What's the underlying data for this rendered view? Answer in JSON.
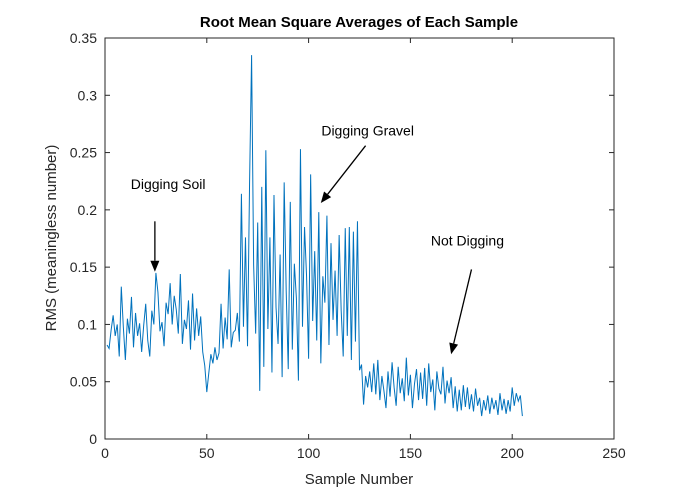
{
  "chart_data": {
    "type": "line",
    "title": "Root Mean Square Averages of Each Sample",
    "xlabel": "Sample Number",
    "ylabel": "RMS (meaningless number)",
    "xlim": [
      0,
      250
    ],
    "ylim": [
      0,
      0.35
    ],
    "xticks": [
      0,
      50,
      100,
      150,
      200,
      250
    ],
    "xtick_labels": [
      "0",
      "50",
      "100",
      "150",
      "200",
      "250"
    ],
    "yticks": [
      0,
      0.05,
      0.1,
      0.15,
      0.2,
      0.25,
      0.3,
      0.35
    ],
    "ytick_labels": [
      "0",
      "0.05",
      "0.1",
      "0.15",
      "0.2",
      "0.25",
      "0.3",
      "0.35"
    ],
    "grid": false,
    "series": [
      {
        "name": "RMS",
        "color": "#0072bd",
        "x_start": 1,
        "x_step": 1,
        "values": [
          0.082,
          0.079,
          0.095,
          0.108,
          0.09,
          0.1,
          0.072,
          0.133,
          0.098,
          0.069,
          0.105,
          0.092,
          0.124,
          0.08,
          0.11,
          0.09,
          0.101,
          0.076,
          0.099,
          0.118,
          0.086,
          0.072,
          0.112,
          0.1,
          0.145,
          0.128,
          0.094,
          0.102,
          0.081,
          0.119,
          0.109,
          0.136,
          0.1,
          0.125,
          0.113,
          0.092,
          0.144,
          0.083,
          0.104,
          0.096,
          0.121,
          0.078,
          0.127,
          0.086,
          0.114,
          0.09,
          0.107,
          0.076,
          0.064,
          0.041,
          0.058,
          0.074,
          0.066,
          0.08,
          0.069,
          0.075,
          0.118,
          0.079,
          0.106,
          0.087,
          0.148,
          0.08,
          0.093,
          0.095,
          0.11,
          0.085,
          0.214,
          0.098,
          0.176,
          0.081,
          0.223,
          0.335,
          0.152,
          0.092,
          0.189,
          0.042,
          0.22,
          0.063,
          0.252,
          0.096,
          0.176,
          0.058,
          0.213,
          0.115,
          0.083,
          0.161,
          0.054,
          0.224,
          0.129,
          0.061,
          0.207,
          0.078,
          0.153,
          0.123,
          0.051,
          0.253,
          0.098,
          0.185,
          0.142,
          0.07,
          0.231,
          0.103,
          0.164,
          0.086,
          0.198,
          0.066,
          0.142,
          0.119,
          0.195,
          0.082,
          0.171,
          0.104,
          0.147,
          0.09,
          0.178,
          0.112,
          0.072,
          0.184,
          0.09,
          0.185,
          0.069,
          0.181,
          0.085,
          0.19,
          0.06,
          0.065,
          0.03,
          0.055,
          0.045,
          0.059,
          0.041,
          0.066,
          0.039,
          0.069,
          0.034,
          0.055,
          0.042,
          0.027,
          0.059,
          0.037,
          0.067,
          0.045,
          0.029,
          0.063,
          0.04,
          0.053,
          0.033,
          0.071,
          0.038,
          0.056,
          0.027,
          0.048,
          0.061,
          0.034,
          0.058,
          0.035,
          0.062,
          0.029,
          0.066,
          0.041,
          0.052,
          0.025,
          0.059,
          0.044,
          0.039,
          0.063,
          0.031,
          0.051,
          0.04,
          0.054,
          0.027,
          0.046,
          0.024,
          0.043,
          0.025,
          0.047,
          0.028,
          0.045,
          0.026,
          0.039,
          0.024,
          0.044,
          0.029,
          0.036,
          0.02,
          0.034,
          0.025,
          0.038,
          0.022,
          0.036,
          0.026,
          0.034,
          0.021,
          0.04,
          0.025,
          0.035,
          0.022,
          0.034,
          0.024,
          0.045,
          0.029,
          0.04,
          0.033,
          0.038,
          0.02
        ]
      }
    ],
    "annotations": [
      {
        "text": "Digging Soil",
        "label_x": 31,
        "label_y": 0.218,
        "tip_x": 24.5,
        "tip_y": 0.146,
        "tail_x": 24.5,
        "tail_y": 0.19
      },
      {
        "text": "Digging Gravel",
        "label_x": 129,
        "label_y": 0.265,
        "tip_x": 106,
        "tip_y": 0.206,
        "tail_x": 128,
        "tail_y": 0.256
      },
      {
        "text": "Not Digging",
        "label_x": 178,
        "label_y": 0.169,
        "tip_x": 170,
        "tip_y": 0.074,
        "tail_x": 180,
        "tail_y": 0.148
      }
    ]
  }
}
